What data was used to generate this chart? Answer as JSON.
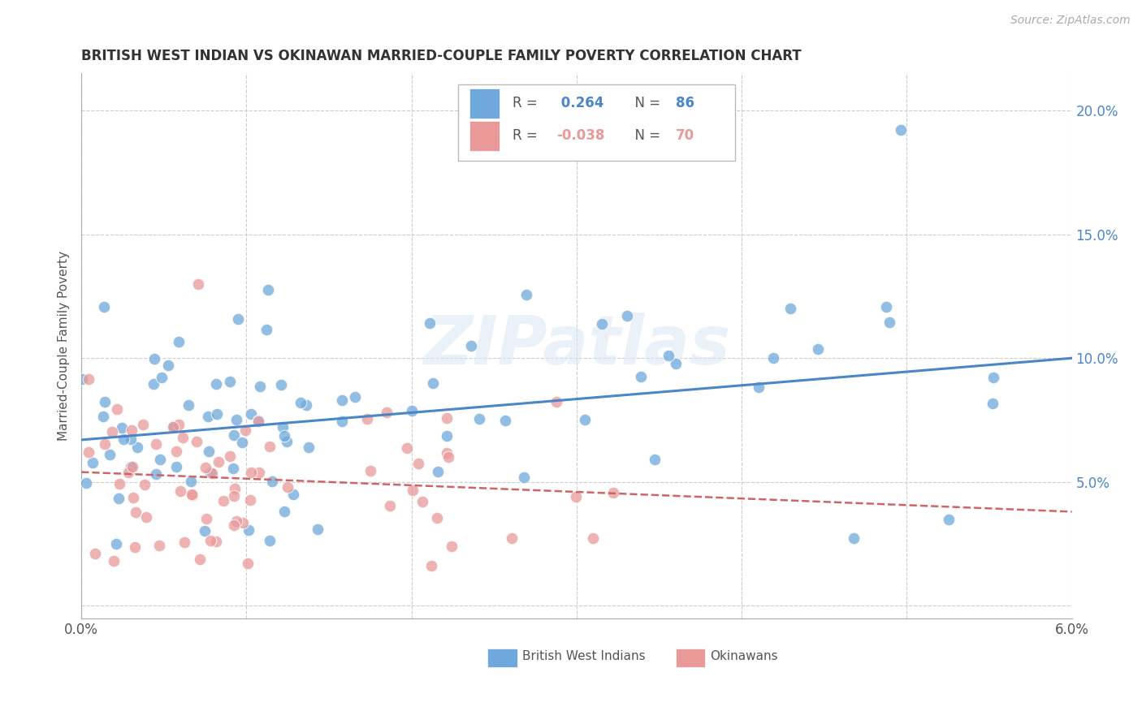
{
  "title": "BRITISH WEST INDIAN VS OKINAWAN MARRIED-COUPLE FAMILY POVERTY CORRELATION CHART",
  "source": "Source: ZipAtlas.com",
  "ylabel": "Married-Couple Family Poverty",
  "yticks": [
    0.0,
    0.05,
    0.1,
    0.15,
    0.2
  ],
  "ytick_labels": [
    "",
    "5.0%",
    "10.0%",
    "15.0%",
    "20.0%"
  ],
  "xlim": [
    0.0,
    0.06
  ],
  "ylim": [
    -0.005,
    0.215
  ],
  "blue_R": 0.264,
  "blue_N": 86,
  "pink_R": -0.038,
  "pink_N": 70,
  "blue_color": "#6fa8dc",
  "pink_color": "#ea9999",
  "blue_line_color": "#4a86c8",
  "pink_line_color": "#cc6666",
  "watermark": "ZIPatlas",
  "legend_blue_label": "British West Indians",
  "legend_pink_label": "Okinawans",
  "blue_line_x0": 0.0,
  "blue_line_y0": 0.067,
  "blue_line_x1": 0.06,
  "blue_line_y1": 0.1,
  "pink_line_x0": 0.0,
  "pink_line_y0": 0.054,
  "pink_line_x1": 0.06,
  "pink_line_y1": 0.038
}
